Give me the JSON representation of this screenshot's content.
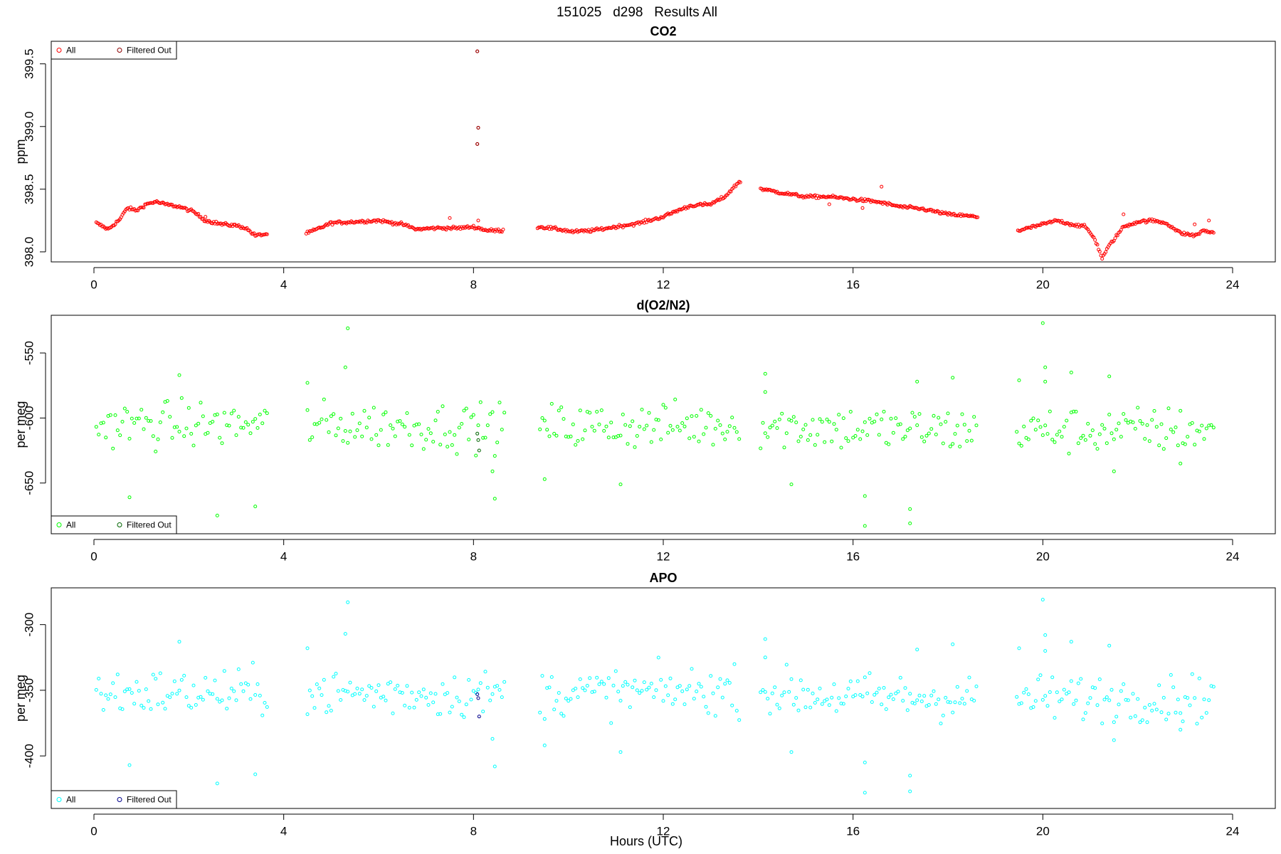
{
  "figure": {
    "suptitle": "151025   d298   Results All",
    "xlabel": "Hours (UTC)"
  },
  "chart_data": [
    {
      "type": "scatter",
      "title": "CO2",
      "xlabel": "",
      "ylabel": "ppm",
      "xlim": [
        -0.9,
        24.9
      ],
      "ylim": [
        397.92,
        399.68
      ],
      "xticks": [
        0,
        4,
        8,
        12,
        16,
        20,
        24
      ],
      "yticks": [
        398.0,
        398.5,
        399.0,
        399.5
      ],
      "ytick_labels": [
        "398.0",
        "398.5",
        "399.0",
        "399.5"
      ],
      "legend": {
        "position": "top-left",
        "entries": [
          "All",
          "Filtered Out"
        ]
      },
      "colors": {
        "all": "#ff0000",
        "filtered": "#8b0000"
      },
      "marker": "open-circle",
      "gaps_hours": [
        [
          3.65,
          4.45
        ],
        [
          8.65,
          9.35
        ],
        [
          13.65,
          14.05
        ],
        [
          18.65,
          19.45
        ],
        [
          23.65,
          24
        ]
      ],
      "series": [
        {
          "name": "All",
          "profile": [
            [
              0.05,
              398.23
            ],
            [
              0.3,
              398.18
            ],
            [
              0.55,
              398.26
            ],
            [
              0.7,
              398.35
            ],
            [
              0.9,
              398.33
            ],
            [
              1.1,
              398.38
            ],
            [
              1.3,
              398.4
            ],
            [
              1.5,
              398.38
            ],
            [
              1.8,
              398.36
            ],
            [
              2.1,
              398.32
            ],
            [
              2.35,
              398.25
            ],
            [
              2.7,
              398.22
            ],
            [
              3.0,
              398.21
            ],
            [
              3.2,
              398.19
            ],
            [
              3.4,
              398.13
            ],
            [
              3.6,
              398.14
            ],
            [
              4.5,
              398.15
            ],
            [
              4.7,
              398.18
            ],
            [
              5.0,
              398.23
            ],
            [
              5.5,
              398.24
            ],
            [
              6.0,
              398.25
            ],
            [
              6.5,
              398.22
            ],
            [
              6.8,
              398.18
            ],
            [
              7.2,
              398.19
            ],
            [
              7.7,
              398.19
            ],
            [
              8.0,
              398.2
            ],
            [
              8.3,
              398.17
            ],
            [
              8.6,
              398.17
            ],
            [
              9.4,
              398.2
            ],
            [
              9.8,
              398.18
            ],
            [
              10.1,
              398.16
            ],
            [
              10.5,
              398.17
            ],
            [
              11.0,
              398.2
            ],
            [
              11.5,
              398.23
            ],
            [
              12.0,
              398.28
            ],
            [
              12.3,
              398.33
            ],
            [
              12.6,
              398.37
            ],
            [
              13.0,
              398.38
            ],
            [
              13.3,
              398.44
            ],
            [
              13.6,
              398.56
            ],
            [
              14.1,
              398.5
            ],
            [
              14.5,
              398.47
            ],
            [
              15.0,
              398.44
            ],
            [
              15.5,
              398.44
            ],
            [
              16.0,
              398.42
            ],
            [
              16.5,
              398.4
            ],
            [
              17.0,
              398.36
            ],
            [
              17.5,
              398.34
            ],
            [
              18.0,
              398.3
            ],
            [
              18.3,
              398.29
            ],
            [
              18.6,
              398.28
            ],
            [
              19.5,
              398.17
            ],
            [
              19.8,
              398.2
            ],
            [
              20.0,
              398.22
            ],
            [
              20.3,
              398.25
            ],
            [
              20.6,
              398.22
            ],
            [
              20.9,
              398.2
            ],
            [
              21.1,
              398.1
            ],
            [
              21.25,
              397.95
            ],
            [
              21.4,
              398.05
            ],
            [
              21.7,
              398.2
            ],
            [
              22.0,
              398.24
            ],
            [
              22.3,
              398.25
            ],
            [
              22.6,
              398.23
            ],
            [
              22.9,
              398.15
            ],
            [
              23.2,
              398.13
            ],
            [
              23.4,
              398.17
            ],
            [
              23.6,
              398.15
            ]
          ],
          "noise": 0.006,
          "step_hours": 0.025,
          "outliers": [
            [
              8.08,
              399.6
            ],
            [
              8.1,
              398.99
            ],
            [
              8.08,
              398.86
            ],
            [
              8.1,
              398.25
            ],
            [
              7.5,
              398.27
            ],
            [
              2.35,
              398.28
            ],
            [
              16.6,
              398.52
            ],
            [
              15.5,
              398.38
            ],
            [
              16.2,
              398.35
            ],
            [
              21.7,
              398.3
            ],
            [
              23.5,
              398.25
            ],
            [
              23.2,
              398.22
            ]
          ]
        },
        {
          "name": "Filtered Out",
          "points": [
            [
              8.08,
              399.6
            ],
            [
              8.1,
              398.99
            ],
            [
              8.08,
              398.86
            ]
          ]
        }
      ]
    },
    {
      "type": "scatter",
      "title": "d(O2/N2)",
      "xlabel": "",
      "ylabel": "per meg",
      "xlim": [
        -0.9,
        24.9
      ],
      "ylim": [
        -689,
        -521
      ],
      "xticks": [
        0,
        4,
        8,
        12,
        16,
        20,
        24
      ],
      "yticks": [
        -650,
        -600,
        -550
      ],
      "ytick_labels": [
        "-650",
        "-600",
        "-550"
      ],
      "legend": {
        "position": "bottom-left",
        "entries": [
          "All",
          "Filtered Out"
        ]
      },
      "colors": {
        "all": "#00ff00",
        "filtered": "#006400"
      },
      "marker": "open-circle",
      "gaps_hours": [
        [
          3.65,
          4.45
        ],
        [
          8.65,
          9.35
        ],
        [
          13.65,
          14.05
        ],
        [
          18.65,
          19.45
        ],
        [
          23.65,
          24
        ]
      ],
      "series": [
        {
          "name": "All",
          "profile": [
            [
              0.05,
              -605
            ],
            [
              4.0,
              -605
            ],
            [
              8.6,
              -607
            ],
            [
              13.6,
              -605
            ],
            [
              16.0,
              -608
            ],
            [
              18.6,
              -610
            ],
            [
              23.6,
              -609
            ]
          ],
          "noise": 9,
          "step_hours": 0.05,
          "outliers": [
            [
              0.75,
              -661
            ],
            [
              1.8,
              -567
            ],
            [
              2.6,
              -675
            ],
            [
              3.4,
              -668
            ],
            [
              5.35,
              -531
            ],
            [
              5.3,
              -561
            ],
            [
              4.5,
              -573
            ],
            [
              8.45,
              -662
            ],
            [
              8.4,
              -641
            ],
            [
              9.5,
              -647
            ],
            [
              11.1,
              -651
            ],
            [
              14.15,
              -566
            ],
            [
              14.15,
              -580
            ],
            [
              14.7,
              -651
            ],
            [
              16.25,
              -660
            ],
            [
              16.25,
              -683
            ],
            [
              17.2,
              -670
            ],
            [
              17.2,
              -681
            ],
            [
              17.35,
              -572
            ],
            [
              18.1,
              -569
            ],
            [
              20.0,
              -527
            ],
            [
              20.05,
              -561
            ],
            [
              20.05,
              -572
            ],
            [
              19.5,
              -571
            ],
            [
              20.6,
              -565
            ],
            [
              21.4,
              -568
            ],
            [
              21.5,
              -641
            ],
            [
              22.9,
              -635
            ]
          ]
        },
        {
          "name": "Filtered Out",
          "points": [
            [
              8.08,
              -612
            ],
            [
              8.1,
              -617
            ],
            [
              8.12,
              -625
            ]
          ]
        }
      ]
    },
    {
      "type": "scatter",
      "title": "APO",
      "xlabel": "Hours (UTC)",
      "ylabel": "per meg",
      "xlim": [
        -0.9,
        24.9
      ],
      "ylim": [
        -440,
        -272
      ],
      "xticks": [
        0,
        4,
        8,
        12,
        16,
        20,
        24
      ],
      "yticks": [
        -400,
        -350,
        -300
      ],
      "ytick_labels": [
        "-400",
        "-350",
        "-300"
      ],
      "legend": {
        "position": "bottom-left",
        "entries": [
          "All",
          "Filtered Out"
        ]
      },
      "colors": {
        "all": "#00ffff",
        "filtered": "#00008b"
      },
      "marker": "open-circle",
      "gaps_hours": [
        [
          3.65,
          4.45
        ],
        [
          8.65,
          9.35
        ],
        [
          13.65,
          14.05
        ],
        [
          18.65,
          19.45
        ],
        [
          23.65,
          24
        ]
      ],
      "series": [
        {
          "name": "All",
          "profile": [
            [
              0.05,
              -352
            ],
            [
              4.0,
              -352
            ],
            [
              8.6,
              -353
            ],
            [
              13.6,
              -350
            ],
            [
              16.0,
              -355
            ],
            [
              18.6,
              -356
            ],
            [
              23.6,
              -356
            ]
          ],
          "noise": 9,
          "step_hours": 0.05,
          "outliers": [
            [
              0.75,
              -407
            ],
            [
              1.8,
              -313
            ],
            [
              2.6,
              -421
            ],
            [
              3.4,
              -414
            ],
            [
              5.35,
              -283
            ],
            [
              5.3,
              -307
            ],
            [
              4.5,
              -318
            ],
            [
              8.45,
              -408
            ],
            [
              8.4,
              -387
            ],
            [
              9.5,
              -392
            ],
            [
              11.1,
              -397
            ],
            [
              14.15,
              -311
            ],
            [
              14.15,
              -325
            ],
            [
              14.7,
              -397
            ],
            [
              16.25,
              -405
            ],
            [
              16.25,
              -428
            ],
            [
              17.2,
              -415
            ],
            [
              17.2,
              -427
            ],
            [
              17.35,
              -319
            ],
            [
              18.1,
              -315
            ],
            [
              20.0,
              -281
            ],
            [
              20.05,
              -308
            ],
            [
              20.05,
              -320
            ],
            [
              19.5,
              -318
            ],
            [
              20.6,
              -313
            ],
            [
              21.4,
              -316
            ],
            [
              21.5,
              -388
            ],
            [
              22.9,
              -380
            ]
          ]
        },
        {
          "name": "Filtered Out",
          "points": [
            [
              8.08,
              -353
            ],
            [
              8.1,
              -356
            ],
            [
              8.12,
              -370
            ]
          ]
        }
      ]
    }
  ]
}
